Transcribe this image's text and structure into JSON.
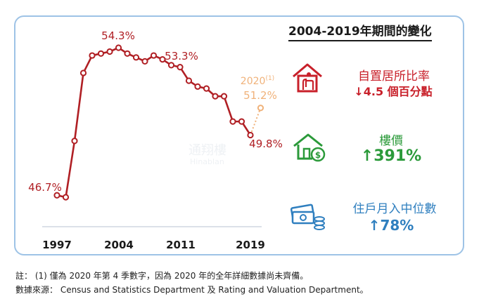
{
  "title": "2004-2019年期間的變化",
  "chart_data": {
    "type": "line",
    "x": [
      1997,
      1998,
      1999,
      2000,
      2001,
      2002,
      2003,
      2004,
      2005,
      2006,
      2007,
      2008,
      2009,
      2010,
      2011,
      2012,
      2013,
      2014,
      2015,
      2016,
      2017,
      2018,
      2019
    ],
    "values": [
      46.7,
      46.6,
      49.5,
      53.0,
      53.9,
      54.0,
      54.1,
      54.3,
      54.0,
      53.8,
      53.6,
      53.9,
      53.7,
      53.4,
      53.3,
      52.6,
      52.3,
      52.2,
      51.8,
      51.8,
      50.5,
      50.5,
      49.8
    ],
    "projection": {
      "x": 2020,
      "value": 51.2
    },
    "xticks": [
      "1997",
      "2004",
      "2011",
      "2019"
    ],
    "point_labels": {
      "start": "46.7%",
      "peak": "54.3%",
      "mid": "53.3%",
      "end": "49.8%",
      "projection": "51.2%",
      "projection_year": "2020",
      "projection_note": "(1)"
    },
    "colors": {
      "line": "#b01f24",
      "projection": "#f0b27a"
    }
  },
  "stats": [
    {
      "label": "自置居所比率",
      "value": "4.5 個百分點",
      "arrow": "↓",
      "color": "#c8202a",
      "icon": "home-ownership-icon"
    },
    {
      "label": "樓價",
      "value": "391%",
      "arrow": "↑",
      "color": "#2b9a3a",
      "icon": "house-price-icon"
    },
    {
      "label": "住戶月入中位數",
      "value": "78%",
      "arrow": "↑",
      "color": "#2f7fbf",
      "icon": "money-stack-icon"
    }
  ],
  "watermark": {
    "cn": "通翔樓",
    "en": "Hinablan"
  },
  "notes": [
    "註： (1) 僅為 2020 年第 4 季數字，因為 2020 年的全年詳細數據尚未齊備。",
    "數據來源： Census and Statistics Department 及 Rating and Valuation Department。"
  ]
}
